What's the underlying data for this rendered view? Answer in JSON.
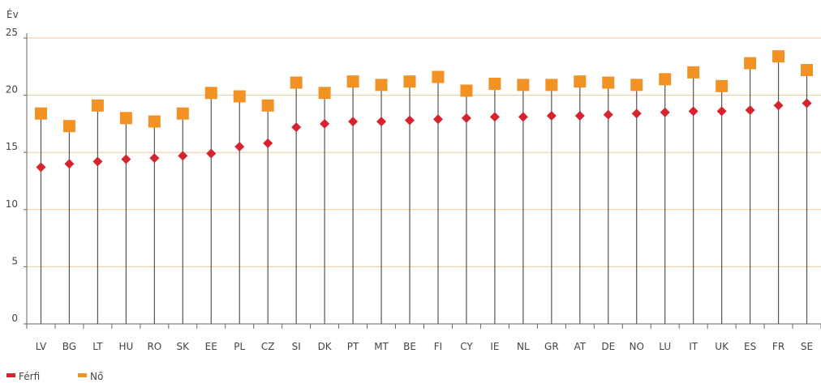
{
  "chart_data": {
    "type": "scatter",
    "unit_label": "Év",
    "ylim": [
      0,
      25
    ],
    "yticks": [
      0,
      5,
      10,
      15,
      20,
      25
    ],
    "grid": true,
    "legend_position": "bottom-left",
    "categories": [
      "LV",
      "BG",
      "LT",
      "HU",
      "RO",
      "SK",
      "EE",
      "PL",
      "CZ",
      "SI",
      "DK",
      "PT",
      "MT",
      "BE",
      "FI",
      "CY",
      "IE",
      "NL",
      "GR",
      "AT",
      "DE",
      "NO",
      "LU",
      "IT",
      "UK",
      "ES",
      "FR",
      "SE"
    ],
    "series": [
      {
        "name": "Férfi",
        "color": "#d7232e",
        "marker": "diamond",
        "values": [
          13.7,
          14.0,
          14.2,
          14.4,
          14.5,
          14.7,
          14.9,
          15.5,
          15.8,
          17.2,
          17.5,
          17.7,
          17.7,
          17.8,
          17.9,
          18.0,
          18.1,
          18.1,
          18.2,
          18.2,
          18.3,
          18.4,
          18.5,
          18.6,
          18.6,
          18.7,
          19.1,
          19.3
        ]
      },
      {
        "name": "Nő",
        "color": "#f39224",
        "marker": "square",
        "values": [
          18.4,
          17.3,
          19.1,
          18.0,
          17.7,
          18.4,
          20.2,
          19.9,
          19.1,
          21.1,
          20.2,
          21.2,
          20.9,
          21.2,
          21.6,
          20.4,
          21.0,
          20.9,
          20.9,
          21.2,
          21.1,
          20.9,
          21.4,
          22.0,
          20.8,
          22.8,
          23.4,
          22.2
        ]
      }
    ]
  }
}
